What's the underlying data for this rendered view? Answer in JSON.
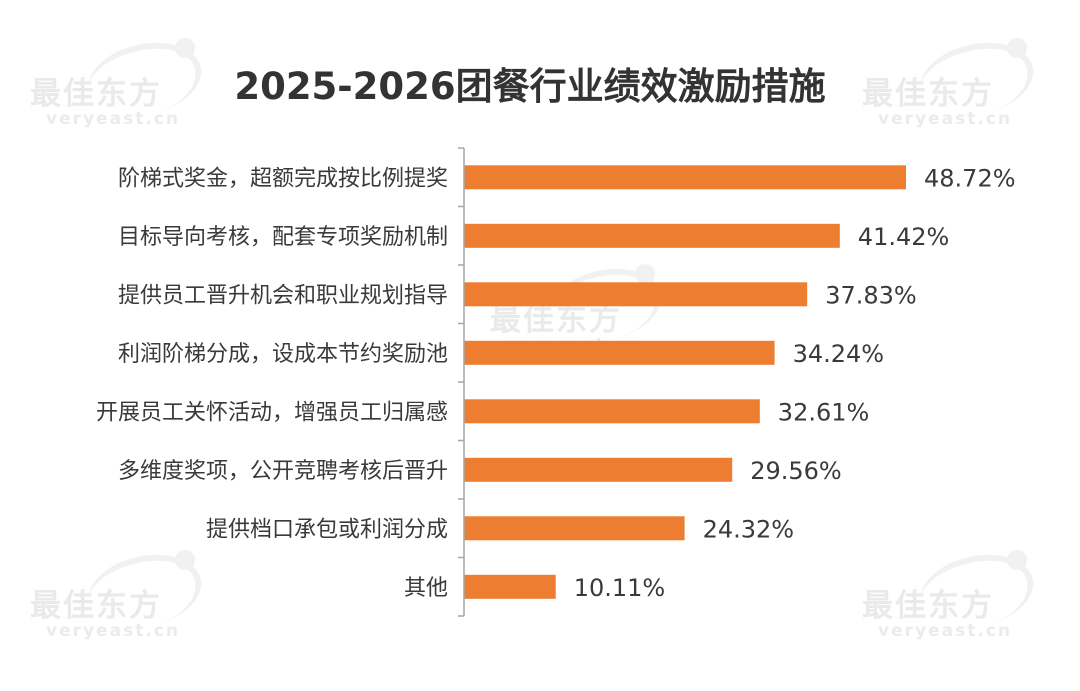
{
  "watermark": {
    "brand": "最佳东方",
    "url": "veryeast.cn"
  },
  "chart_data": {
    "type": "bar",
    "orientation": "horizontal",
    "title": "2025-2026团餐行业绩效激励措施",
    "categories": [
      "阶梯式奖金，超额完成按比例提奖",
      "目标导向考核，配套专项奖励机制",
      "提供员工晋升机会和职业规划指导",
      "利润阶梯分成，设成本节约奖励池",
      "开展员工关怀活动，增强员工归属感",
      "多维度奖项，公开竞聘考核后晋升",
      "提供档口承包或利润分成",
      "其他"
    ],
    "values": [
      48.72,
      41.42,
      37.83,
      34.24,
      32.61,
      29.56,
      24.32,
      10.11
    ],
    "value_labels": [
      "48.72%",
      "41.42%",
      "37.83%",
      "34.24%",
      "32.61%",
      "29.56%",
      "24.32%",
      "10.11%"
    ],
    "unit": "%",
    "bar_color": "#ed7d31",
    "axis_color": "#a6a6a6",
    "xlim": [
      0,
      48.72
    ],
    "grid": false,
    "legend": "none"
  }
}
